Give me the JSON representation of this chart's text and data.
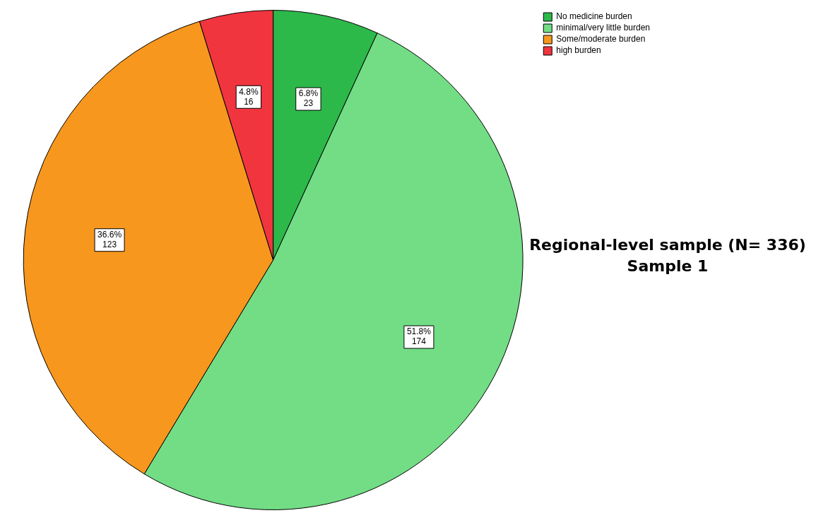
{
  "chart_data": {
    "type": "pie",
    "title": "Regional-level sample (N= 336)",
    "subtitle": "Sample 1",
    "categories": [
      "No medicine burden",
      "minimal/very little burden",
      "Some/moderate burden",
      "high burden"
    ],
    "values": [
      23,
      174,
      123,
      16
    ],
    "colors": [
      "#2db84a",
      "#72dd85",
      "#f7971e",
      "#f0353f"
    ],
    "value_labels": [
      "6.8%\n23",
      "51.8%\n174",
      "36.6%\n123",
      "4.8%\n16"
    ],
    "legend": "top right"
  }
}
